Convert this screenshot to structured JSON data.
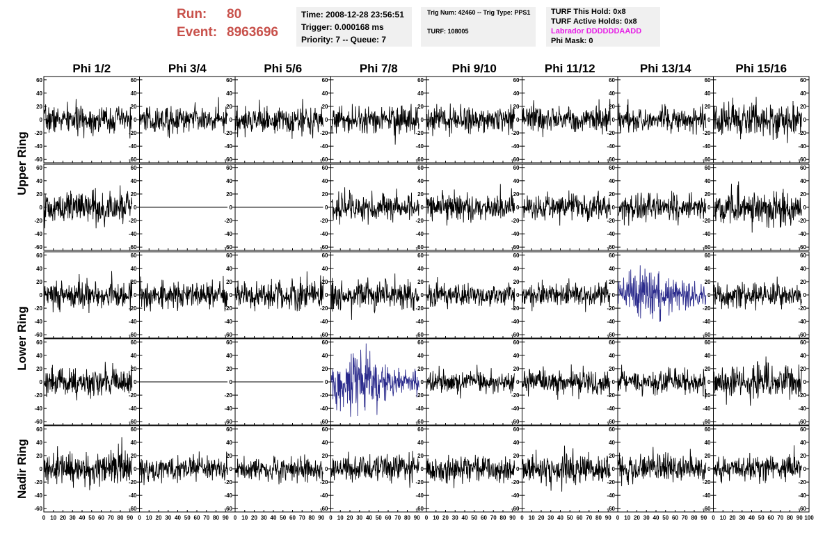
{
  "header": {
    "run_label": "Run:",
    "run_value": "80",
    "event_label": "Event:",
    "event_value": "8963696"
  },
  "time_box": {
    "time": "Time: 2008-12-28 23:56:51",
    "trigger": "Trigger: 0.000168 ms",
    "priority": "Priority: 7 -- Queue: 7"
  },
  "trig_box": {
    "trig": "Trig Num: 42460 -- Trig Type: PPS1",
    "turf": "TURF: 108005"
  },
  "turf_box": {
    "this_hold": "TURF This Hold: 0x8",
    "active_holds": "TURF Active Holds: 0x8",
    "labrador": "Labrador DDDDDDAADD",
    "phi_mask": "Phi Mask: 0"
  },
  "chart_data": {
    "type": "line",
    "columns": [
      "Phi 1/2",
      "Phi 3/4",
      "Phi 5/6",
      "Phi 7/8",
      "Phi 9/10",
      "Phi 11/12",
      "Phi 13/14",
      "Phi 15/16"
    ],
    "ring_labels": [
      "Upper Ring",
      "Lower Ring",
      "Nadir Ring"
    ],
    "ylim": [
      -65,
      65
    ],
    "xlim": [
      0,
      100
    ],
    "y_ticks": [
      -60,
      -40,
      -20,
      0,
      20,
      40,
      60
    ],
    "x_ticks": [
      0,
      10,
      20,
      30,
      40,
      50,
      60,
      70,
      80,
      90,
      100
    ],
    "x_tick_labels": [
      "0",
      "10",
      "20",
      "30",
      "40",
      "50",
      "60",
      "70",
      "80",
      "90",
      "100"
    ],
    "y_tick_labels": [
      "-60",
      "-40",
      "-20",
      "0",
      "20",
      "40",
      "60"
    ],
    "samples": 260,
    "line_color": "#000000",
    "highlight_color": "#2b2b8c",
    "panels": [
      [
        {
          "mode": "noise",
          "amp": 10
        },
        {
          "mode": "noise",
          "amp": 10
        },
        {
          "mode": "noise",
          "amp": 10
        },
        {
          "mode": "noise",
          "amp": 10
        },
        {
          "mode": "noise",
          "amp": 10
        },
        {
          "mode": "noise",
          "amp": 10
        },
        {
          "mode": "noise",
          "amp": 9
        },
        {
          "mode": "noise",
          "amp": 12
        }
      ],
      [
        {
          "mode": "noise",
          "amp": 12
        },
        {
          "mode": "flat"
        },
        {
          "mode": "flat"
        },
        {
          "mode": "noise",
          "amp": 10
        },
        {
          "mode": "noise",
          "amp": 10
        },
        {
          "mode": "noise",
          "amp": 10
        },
        {
          "mode": "noise",
          "amp": 10
        },
        {
          "mode": "noise",
          "amp": 13
        }
      ],
      [
        {
          "mode": "noise",
          "amp": 11
        },
        {
          "mode": "noise",
          "amp": 10
        },
        {
          "mode": "noise",
          "amp": 11
        },
        {
          "mode": "noise",
          "amp": 11
        },
        {
          "mode": "noise",
          "amp": 9
        },
        {
          "mode": "noise",
          "amp": 9
        },
        {
          "mode": "burst",
          "amp": 12,
          "highlight": true
        },
        {
          "mode": "noise",
          "amp": 9
        }
      ],
      [
        {
          "mode": "noise",
          "amp": 11
        },
        {
          "mode": "flat"
        },
        {
          "mode": "flat"
        },
        {
          "mode": "burst",
          "amp": 13,
          "highlight": true
        },
        {
          "mode": "noise",
          "amp": 8
        },
        {
          "mode": "noise",
          "amp": 9
        },
        {
          "mode": "noise",
          "amp": 9
        },
        {
          "mode": "noise",
          "amp": 12
        }
      ],
      [
        {
          "mode": "noise",
          "amp": 13
        },
        {
          "mode": "noise",
          "amp": 9
        },
        {
          "mode": "noise",
          "amp": 9
        },
        {
          "mode": "noise",
          "amp": 10
        },
        {
          "mode": "noise",
          "amp": 9
        },
        {
          "mode": "noise",
          "amp": 11
        },
        {
          "mode": "noise",
          "amp": 11
        },
        {
          "mode": "noise",
          "amp": 9
        }
      ]
    ]
  }
}
